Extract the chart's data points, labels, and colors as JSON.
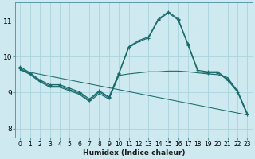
{
  "xlabel": "Humidex (Indice chaleur)",
  "bg_color": "#ceeaf0",
  "grid_color": "#aad4dc",
  "line_color": "#1a6b6b",
  "xlim": [
    -0.5,
    23.5
  ],
  "ylim": [
    7.75,
    11.5
  ],
  "yticks": [
    8,
    9,
    10,
    11
  ],
  "xticks": [
    0,
    1,
    2,
    3,
    4,
    5,
    6,
    7,
    8,
    9,
    10,
    11,
    12,
    13,
    14,
    15,
    16,
    17,
    18,
    19,
    20,
    21,
    22,
    23
  ],
  "curve1_x": [
    0,
    1,
    2,
    3,
    4,
    5,
    6,
    7,
    8,
    9,
    10,
    11,
    12,
    13,
    14,
    15,
    16,
    17,
    18,
    19,
    20,
    21,
    22,
    23
  ],
  "curve1_y": [
    9.72,
    9.55,
    9.35,
    9.22,
    9.22,
    9.12,
    9.02,
    8.82,
    9.05,
    8.88,
    9.55,
    10.28,
    10.45,
    10.55,
    11.05,
    11.25,
    11.05,
    10.35,
    9.62,
    9.58,
    9.58,
    9.38,
    9.05,
    8.42
  ],
  "curve2_x": [
    0,
    1,
    2,
    3,
    4,
    5,
    6,
    7,
    8,
    9,
    10,
    11,
    12,
    13,
    14,
    15,
    16,
    17,
    18,
    19,
    20,
    21,
    22,
    23
  ],
  "curve2_y": [
    9.68,
    9.52,
    9.32,
    9.18,
    9.18,
    9.08,
    8.98,
    8.78,
    9.02,
    8.85,
    9.52,
    10.25,
    10.42,
    10.52,
    11.02,
    11.22,
    11.02,
    10.32,
    9.58,
    9.55,
    9.55,
    9.35,
    9.02,
    8.38
  ],
  "curve3_x": [
    0,
    1,
    2,
    3,
    4,
    5,
    6,
    7,
    8,
    9,
    10,
    11,
    12,
    13,
    14,
    15,
    16,
    17,
    18,
    19,
    20,
    21,
    22,
    23
  ],
  "curve3_y": [
    9.65,
    9.5,
    9.3,
    9.15,
    9.15,
    9.05,
    8.95,
    8.75,
    8.97,
    8.82,
    9.48,
    9.52,
    9.55,
    9.58,
    9.58,
    9.6,
    9.6,
    9.58,
    9.55,
    9.52,
    9.5,
    9.42,
    9.05,
    8.42
  ],
  "curve4_x": [
    0,
    23
  ],
  "curve4_y": [
    9.62,
    8.38
  ]
}
